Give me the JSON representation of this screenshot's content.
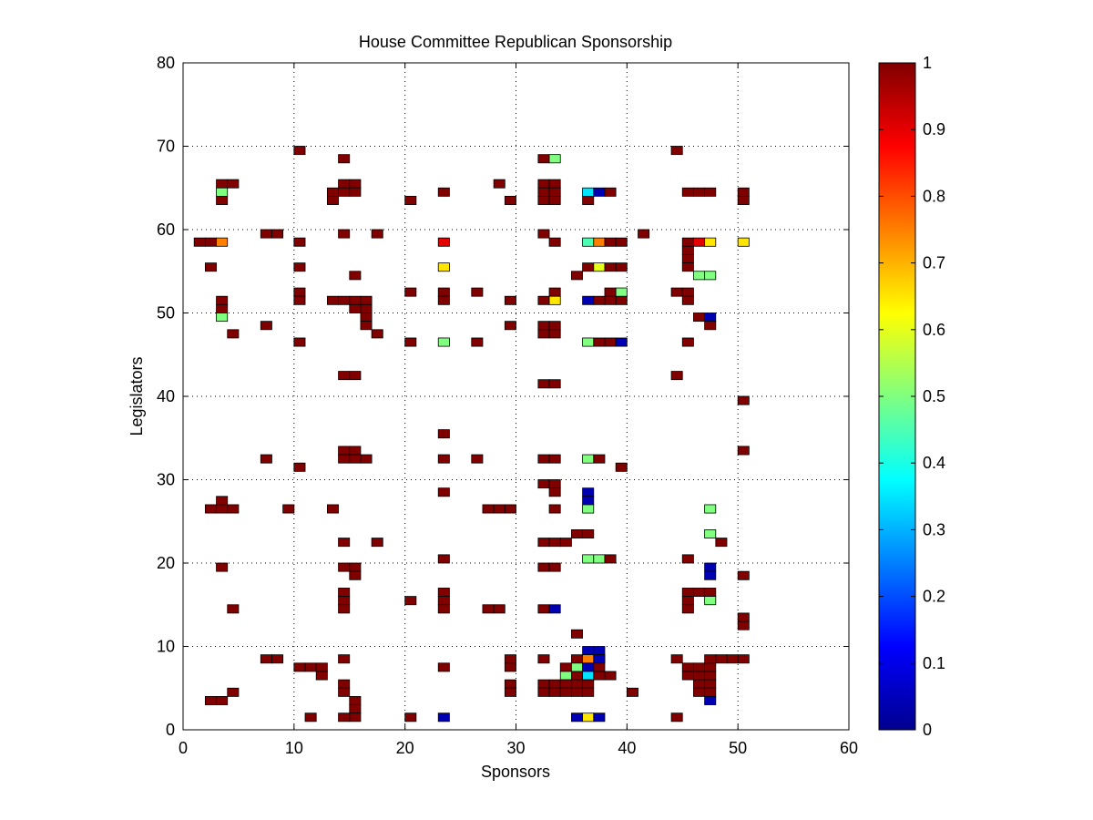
{
  "chart_data": {
    "type": "heatmap",
    "title": "House Committee Republican Sponsorship",
    "xlabel": "Sponsors",
    "ylabel": "Legislators",
    "xlim": [
      0,
      60
    ],
    "ylim": [
      0,
      80
    ],
    "xticks": [
      0,
      10,
      20,
      30,
      40,
      50,
      60
    ],
    "yticks": [
      0,
      10,
      20,
      30,
      40,
      50,
      60,
      70,
      80
    ],
    "grid": true,
    "colormap": "jet",
    "clim": [
      0,
      1
    ],
    "colorbar_ticks": [
      0,
      0.1,
      0.2,
      0.3,
      0.4,
      0.5,
      0.6,
      0.7,
      0.8,
      0.9,
      1
    ],
    "colorbar_tick_labels": [
      "0",
      "0.1",
      "0.2",
      "0.3",
      "0.4",
      "0.5",
      "0.6",
      "0.7",
      "0.8",
      "0.9",
      "1"
    ],
    "cells": [
      [
        10,
        69,
        1
      ],
      [
        14,
        68,
        1
      ],
      [
        32,
        68,
        1
      ],
      [
        33,
        68,
        0.5
      ],
      [
        44,
        69,
        1
      ],
      [
        3,
        65,
        1
      ],
      [
        4,
        65,
        1
      ],
      [
        3,
        64,
        0.5
      ],
      [
        3,
        63,
        1
      ],
      [
        14,
        65,
        1
      ],
      [
        15,
        65,
        1
      ],
      [
        13,
        64,
        1
      ],
      [
        14,
        64,
        1
      ],
      [
        15,
        64,
        1
      ],
      [
        13,
        63,
        1
      ],
      [
        20,
        63,
        1
      ],
      [
        23,
        64,
        1
      ],
      [
        28,
        65,
        1
      ],
      [
        29,
        63,
        1
      ],
      [
        32,
        65,
        1
      ],
      [
        33,
        65,
        1
      ],
      [
        32,
        64,
        1
      ],
      [
        33,
        64,
        1
      ],
      [
        32,
        63,
        1
      ],
      [
        33,
        63,
        1
      ],
      [
        36,
        64,
        0.35
      ],
      [
        37,
        64,
        0.05
      ],
      [
        38,
        64,
        1
      ],
      [
        36,
        63,
        1
      ],
      [
        45,
        64,
        1
      ],
      [
        46,
        64,
        1
      ],
      [
        47,
        64,
        1
      ],
      [
        50,
        64,
        1
      ],
      [
        50,
        63,
        1
      ],
      [
        1,
        58,
        1
      ],
      [
        2,
        58,
        1
      ],
      [
        3,
        58,
        0.75
      ],
      [
        7,
        59,
        1
      ],
      [
        8,
        59,
        1
      ],
      [
        10,
        58,
        1
      ],
      [
        14,
        59,
        1
      ],
      [
        17,
        59,
        1
      ],
      [
        23,
        58,
        0.9
      ],
      [
        32,
        59,
        1
      ],
      [
        33,
        58,
        1
      ],
      [
        36,
        58,
        0.45
      ],
      [
        37,
        58,
        0.75
      ],
      [
        38,
        58,
        1
      ],
      [
        39,
        58,
        1
      ],
      [
        41,
        59,
        1
      ],
      [
        45,
        58,
        1
      ],
      [
        46,
        58,
        0.9
      ],
      [
        47,
        58,
        0.65
      ],
      [
        50,
        58,
        0.65
      ],
      [
        2,
        55,
        1
      ],
      [
        10,
        55,
        1
      ],
      [
        23,
        55,
        0.65
      ],
      [
        15,
        54,
        1
      ],
      [
        35,
        54,
        1
      ],
      [
        36,
        55,
        1
      ],
      [
        37,
        55,
        0.6
      ],
      [
        38,
        55,
        1
      ],
      [
        39,
        55,
        1
      ],
      [
        45,
        57,
        1
      ],
      [
        45,
        56,
        1
      ],
      [
        45,
        55,
        1
      ],
      [
        46,
        54,
        0.5
      ],
      [
        47,
        54,
        0.5
      ],
      [
        10,
        52,
        1
      ],
      [
        10,
        51,
        1
      ],
      [
        14,
        51,
        1
      ],
      [
        15,
        51,
        1
      ],
      [
        16,
        51,
        1
      ],
      [
        13,
        51,
        1
      ],
      [
        15,
        50,
        1
      ],
      [
        16,
        50,
        1
      ],
      [
        16,
        49,
        1
      ],
      [
        16,
        48,
        1
      ],
      [
        17,
        47,
        1
      ],
      [
        3,
        51,
        1
      ],
      [
        3,
        50,
        1
      ],
      [
        3,
        49,
        0.5
      ],
      [
        4,
        47,
        1
      ],
      [
        7,
        48,
        1
      ],
      [
        10,
        46,
        1
      ],
      [
        20,
        52,
        1
      ],
      [
        23,
        52,
        1
      ],
      [
        23,
        51,
        1
      ],
      [
        26,
        52,
        1
      ],
      [
        29,
        51,
        1
      ],
      [
        32,
        51,
        1
      ],
      [
        33,
        52,
        1
      ],
      [
        33,
        51,
        0.65
      ],
      [
        29,
        48,
        1
      ],
      [
        32,
        48,
        1
      ],
      [
        33,
        48,
        1
      ],
      [
        32,
        47,
        1
      ],
      [
        33,
        47,
        1
      ],
      [
        20,
        46,
        1
      ],
      [
        23,
        46,
        0.5
      ],
      [
        26,
        46,
        1
      ],
      [
        36,
        51,
        0.05
      ],
      [
        37,
        51,
        1
      ],
      [
        38,
        51,
        1
      ],
      [
        39,
        51,
        1
      ],
      [
        38,
        52,
        1
      ],
      [
        39,
        52,
        0.5
      ],
      [
        36,
        46,
        0.5
      ],
      [
        37,
        46,
        1
      ],
      [
        38,
        46,
        1
      ],
      [
        39,
        46,
        0.05
      ],
      [
        44,
        52,
        1
      ],
      [
        45,
        52,
        1
      ],
      [
        45,
        51,
        1
      ],
      [
        46,
        49,
        1
      ],
      [
        47,
        49,
        0.05
      ],
      [
        47,
        48,
        1
      ],
      [
        45,
        46,
        1
      ],
      [
        14,
        42,
        1
      ],
      [
        15,
        42,
        1
      ],
      [
        32,
        41,
        1
      ],
      [
        33,
        41,
        1
      ],
      [
        44,
        42,
        1
      ],
      [
        50,
        39,
        1
      ],
      [
        50,
        33,
        1
      ],
      [
        23,
        35,
        1
      ],
      [
        14,
        33,
        1
      ],
      [
        15,
        33,
        1
      ],
      [
        14,
        32,
        1
      ],
      [
        15,
        32,
        1
      ],
      [
        16,
        32,
        1
      ],
      [
        7,
        32,
        1
      ],
      [
        10,
        31,
        1
      ],
      [
        23,
        32,
        1
      ],
      [
        26,
        32,
        1
      ],
      [
        32,
        32,
        1
      ],
      [
        33,
        32,
        1
      ],
      [
        36,
        32,
        0.5
      ],
      [
        37,
        32,
        1
      ],
      [
        39,
        31,
        1
      ],
      [
        32,
        29,
        1
      ],
      [
        33,
        29,
        1
      ],
      [
        33,
        28,
        1
      ],
      [
        23,
        28,
        1
      ],
      [
        36,
        28,
        0.05
      ],
      [
        36,
        27,
        0.05
      ],
      [
        36,
        26,
        0.5
      ],
      [
        3,
        27,
        1
      ],
      [
        2,
        26,
        1
      ],
      [
        3,
        26,
        1
      ],
      [
        4,
        26,
        1
      ],
      [
        9,
        26,
        1
      ],
      [
        13,
        26,
        1
      ],
      [
        27,
        26,
        1
      ],
      [
        28,
        26,
        1
      ],
      [
        29,
        26,
        1
      ],
      [
        33,
        26,
        1
      ],
      [
        47,
        26,
        0.5
      ],
      [
        35,
        23,
        1
      ],
      [
        36,
        23,
        1
      ],
      [
        34,
        22,
        1
      ],
      [
        32,
        22,
        1
      ],
      [
        33,
        22,
        1
      ],
      [
        47,
        23,
        0.5
      ],
      [
        48,
        22,
        1
      ],
      [
        14,
        22,
        1
      ],
      [
        17,
        22,
        1
      ],
      [
        23,
        20,
        1
      ],
      [
        36,
        20,
        0.5
      ],
      [
        37,
        20,
        0.5
      ],
      [
        38,
        20,
        1
      ],
      [
        45,
        20,
        1
      ],
      [
        3,
        19,
        1
      ],
      [
        14,
        19,
        1
      ],
      [
        15,
        19,
        1
      ],
      [
        15,
        18,
        1
      ],
      [
        32,
        19,
        1
      ],
      [
        33,
        19,
        1
      ],
      [
        47,
        19,
        0.05
      ],
      [
        47,
        18,
        0.05
      ],
      [
        50,
        18,
        1
      ],
      [
        14,
        16,
        1
      ],
      [
        14,
        15,
        1
      ],
      [
        14,
        14,
        1
      ],
      [
        20,
        15,
        1
      ],
      [
        23,
        16,
        1
      ],
      [
        23,
        15,
        1
      ],
      [
        23,
        14,
        1
      ],
      [
        4,
        14,
        1
      ],
      [
        27,
        14,
        1
      ],
      [
        28,
        14,
        1
      ],
      [
        32,
        14,
        1
      ],
      [
        33,
        14,
        0.05
      ],
      [
        45,
        16,
        1
      ],
      [
        46,
        16,
        1
      ],
      [
        47,
        16,
        1
      ],
      [
        47,
        15,
        0.5
      ],
      [
        45,
        15,
        1
      ],
      [
        45,
        14,
        1
      ],
      [
        50,
        13,
        1
      ],
      [
        50,
        12,
        1
      ],
      [
        35,
        11,
        1
      ],
      [
        36,
        9,
        0.05
      ],
      [
        37,
        9,
        0.05
      ],
      [
        36,
        8,
        0.05
      ],
      [
        37,
        8,
        0.05
      ],
      [
        7,
        8,
        1
      ],
      [
        8,
        8,
        1
      ],
      [
        14,
        8,
        1
      ],
      [
        29,
        8,
        1
      ],
      [
        32,
        8,
        1
      ],
      [
        35,
        8,
        1
      ],
      [
        36,
        8,
        0.75
      ],
      [
        37,
        8,
        0.05
      ],
      [
        44,
        8,
        1
      ],
      [
        47,
        8,
        1
      ],
      [
        48,
        8,
        1
      ],
      [
        49,
        8,
        1
      ],
      [
        50,
        8,
        1
      ],
      [
        10,
        7,
        1
      ],
      [
        11,
        7,
        1
      ],
      [
        12,
        7,
        1
      ],
      [
        12,
        6,
        1
      ],
      [
        23,
        7,
        1
      ],
      [
        29,
        7,
        1
      ],
      [
        34,
        7,
        1
      ],
      [
        35,
        7,
        0.5
      ],
      [
        36,
        7,
        0.05
      ],
      [
        37,
        7,
        1
      ],
      [
        34,
        6,
        0.5
      ],
      [
        35,
        6,
        1
      ],
      [
        36,
        6,
        0.35
      ],
      [
        37,
        6,
        1
      ],
      [
        38,
        6,
        1
      ],
      [
        45,
        7,
        1
      ],
      [
        46,
        7,
        1
      ],
      [
        45,
        6,
        1
      ],
      [
        46,
        6,
        1
      ],
      [
        47,
        6,
        1
      ],
      [
        47,
        7,
        1
      ],
      [
        14,
        5,
        1
      ],
      [
        29,
        5,
        1
      ],
      [
        32,
        5,
        1
      ],
      [
        33,
        5,
        1
      ],
      [
        34,
        5,
        1
      ],
      [
        35,
        5,
        1
      ],
      [
        36,
        5,
        1
      ],
      [
        46,
        5,
        1
      ],
      [
        47,
        5,
        1
      ],
      [
        14,
        4,
        1
      ],
      [
        29,
        4,
        1
      ],
      [
        32,
        4,
        1
      ],
      [
        33,
        4,
        1
      ],
      [
        34,
        4,
        1
      ],
      [
        35,
        4,
        1
      ],
      [
        36,
        4,
        1
      ],
      [
        40,
        4,
        1
      ],
      [
        46,
        4,
        1
      ],
      [
        47,
        4,
        1
      ],
      [
        47,
        3,
        0.05
      ],
      [
        2,
        3,
        1
      ],
      [
        3,
        3,
        1
      ],
      [
        4,
        4,
        1
      ],
      [
        15,
        3,
        1
      ],
      [
        15,
        2,
        1
      ],
      [
        15,
        1,
        1
      ],
      [
        14,
        1,
        1
      ],
      [
        11,
        1,
        1
      ],
      [
        20,
        1,
        1
      ],
      [
        23,
        1,
        0.05
      ],
      [
        35,
        1,
        0.05
      ],
      [
        36,
        1,
        0.65
      ],
      [
        37,
        1,
        0.05
      ],
      [
        44,
        1,
        1
      ]
    ]
  }
}
